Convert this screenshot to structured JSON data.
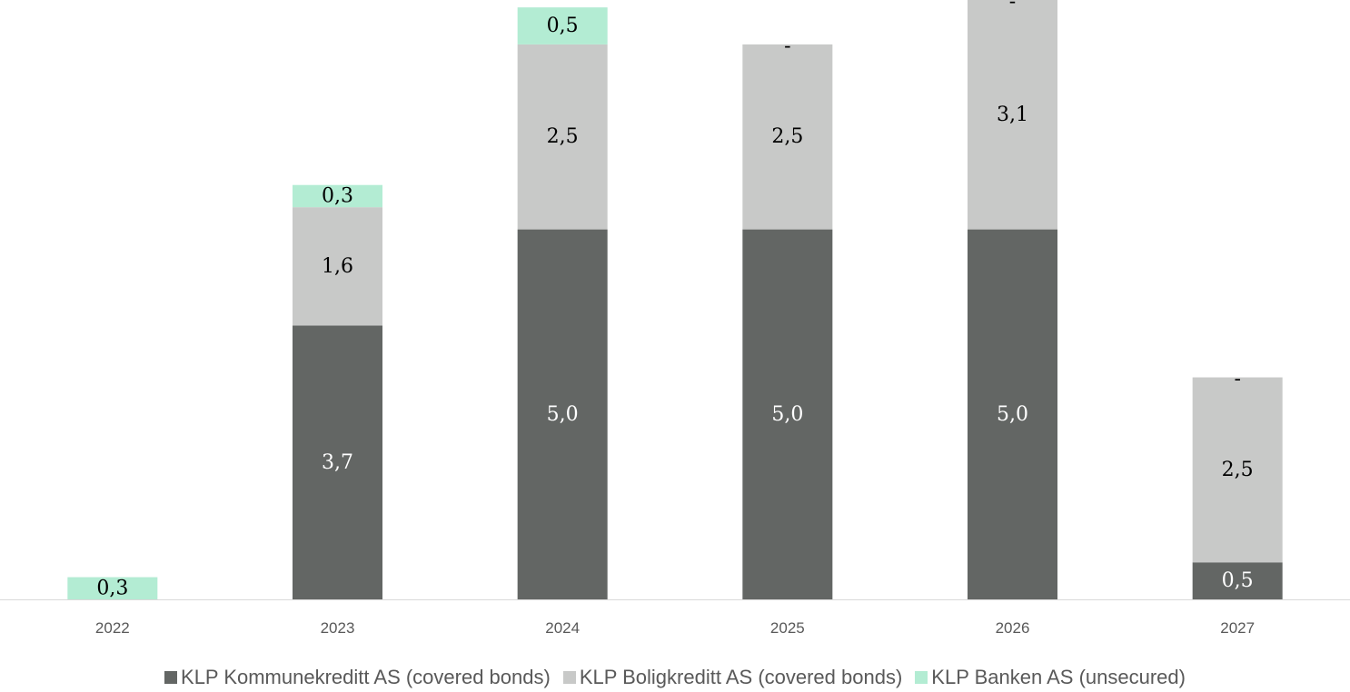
{
  "chart_data": {
    "type": "bar",
    "stacked": true,
    "categories": [
      "2022",
      "2023",
      "2024",
      "2025",
      "2026",
      "2027"
    ],
    "series": [
      {
        "name": "KLP Kommunekreditt AS (covered bonds)",
        "color": "#636664",
        "label_color": "#ffffff",
        "values": [
          0,
          3.7,
          5.0,
          5.0,
          5.0,
          0.5
        ],
        "labels": [
          "",
          "3,7",
          "5,0",
          "5,0",
          "5,0",
          "0,5"
        ]
      },
      {
        "name": "KLP Boligkreditt AS (covered bonds)",
        "color": "#c8c9c8",
        "label_color": "#000000",
        "values": [
          0,
          1.6,
          2.5,
          2.5,
          3.1,
          2.5
        ],
        "labels": [
          "",
          "1,6",
          "2,5",
          "2,5",
          "3,1",
          "2,5"
        ]
      },
      {
        "name": "KLP Banken AS (unsecured)",
        "color": "#b3ecd3",
        "label_color": "#000000",
        "values": [
          0.3,
          0.3,
          0.5,
          0,
          0,
          0
        ],
        "labels": [
          "0,3",
          "0,3",
          "0,5",
          "-",
          "-",
          "-"
        ]
      }
    ],
    "ylim": [
      0,
      8.1
    ],
    "grid": false,
    "legend_position": "bottom"
  }
}
